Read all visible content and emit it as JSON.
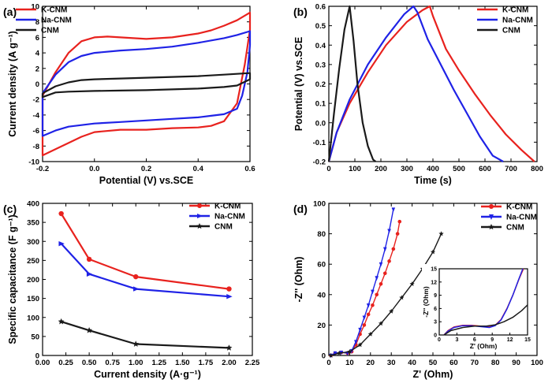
{
  "colors": {
    "K-CNM": "#e8221e",
    "Na-CNM": "#1f22e6",
    "CNM": "#1a1a1a"
  },
  "chart_data": [
    {
      "id": "a",
      "panel_label": "(a)",
      "type": "line",
      "xlabel": "Potential (V) vs.SCE",
      "ylabel": "Current density (A g⁻¹)",
      "xlim": [
        -0.2,
        0.6
      ],
      "ylim": [
        -10,
        10
      ],
      "xticks": [
        -0.2,
        0.0,
        0.2,
        0.4,
        0.6
      ],
      "xtick_labels": [
        "-0.2",
        "0.0",
        "0.2",
        "0.4",
        "0.6"
      ],
      "yticks": [
        -10,
        -8,
        -6,
        -4,
        -2,
        0,
        2,
        4,
        6,
        8,
        10
      ],
      "legend": "top-left",
      "series": [
        {
          "name": "K-CNM",
          "x": [
            -0.2,
            -0.15,
            -0.1,
            -0.05,
            0.0,
            0.05,
            0.1,
            0.2,
            0.3,
            0.4,
            0.45,
            0.5,
            0.55,
            0.6,
            0.6,
            0.58,
            0.55,
            0.5,
            0.45,
            0.4,
            0.3,
            0.2,
            0.1,
            0.0,
            -0.05,
            -0.1,
            -0.15,
            -0.2,
            -0.2
          ],
          "y": [
            -1.5,
            1.5,
            4.0,
            5.5,
            6.0,
            6.1,
            6.0,
            5.8,
            6.0,
            6.5,
            6.9,
            7.5,
            8.2,
            9.2,
            7.0,
            2.5,
            -2.5,
            -4.8,
            -5.4,
            -5.6,
            -5.7,
            -5.9,
            -5.9,
            -6.2,
            -6.8,
            -7.6,
            -8.4,
            -9.2,
            -1.5
          ]
        },
        {
          "name": "Na-CNM",
          "x": [
            -0.2,
            -0.15,
            -0.1,
            -0.05,
            0.0,
            0.1,
            0.2,
            0.3,
            0.4,
            0.5,
            0.55,
            0.6,
            0.6,
            0.59,
            0.57,
            0.55,
            0.5,
            0.45,
            0.4,
            0.3,
            0.2,
            0.1,
            0.0,
            -0.1,
            -0.15,
            -0.2,
            -0.2
          ],
          "y": [
            -1.2,
            1.2,
            2.8,
            3.6,
            4.0,
            4.3,
            4.5,
            4.8,
            5.3,
            5.9,
            6.3,
            6.8,
            5.0,
            1.5,
            -1.5,
            -3.2,
            -3.9,
            -4.1,
            -4.3,
            -4.5,
            -4.7,
            -4.9,
            -5.1,
            -5.5,
            -6.0,
            -6.7,
            -1.2
          ]
        },
        {
          "name": "CNM",
          "x": [
            -0.2,
            -0.15,
            -0.1,
            -0.05,
            0.0,
            0.1,
            0.2,
            0.3,
            0.4,
            0.5,
            0.6,
            0.6,
            0.55,
            0.5,
            0.45,
            0.4,
            0.3,
            0.2,
            0.1,
            0.0,
            -0.1,
            -0.15,
            -0.2,
            -0.2
          ],
          "y": [
            -1.2,
            -0.3,
            0.2,
            0.5,
            0.6,
            0.7,
            0.8,
            0.9,
            1.0,
            1.2,
            1.4,
            0.6,
            -0.2,
            -0.4,
            -0.5,
            -0.6,
            -0.7,
            -0.8,
            -0.85,
            -0.9,
            -1.0,
            -1.1,
            -1.7,
            -1.2
          ]
        }
      ]
    },
    {
      "id": "b",
      "panel_label": "(b)",
      "type": "line",
      "xlabel": "Time (s)",
      "ylabel": "Potential (V) vs.SCE",
      "xlim": [
        0,
        800
      ],
      "ylim": [
        -0.2,
        0.6
      ],
      "xticks": [
        0,
        100,
        200,
        300,
        400,
        500,
        600,
        700,
        800
      ],
      "xtick_labels": [
        "0",
        "100",
        "200",
        "300",
        "400",
        "500",
        "600",
        "700",
        "800"
      ],
      "yticks": [
        -0.2,
        -0.1,
        0.0,
        0.1,
        0.2,
        0.3,
        0.4,
        0.5,
        0.6
      ],
      "ytick_labels": [
        "-0.2",
        "-0.1",
        "0.0",
        "0.1",
        "0.2",
        "0.3",
        "0.4",
        "0.5",
        "0.6"
      ],
      "legend": "top-right",
      "series": [
        {
          "name": "K-CNM",
          "x": [
            0,
            30,
            80,
            150,
            220,
            300,
            360,
            388,
            400,
            450,
            500,
            560,
            620,
            680,
            740,
            790
          ],
          "y": [
            -0.2,
            -0.05,
            0.1,
            0.26,
            0.4,
            0.52,
            0.58,
            0.6,
            0.55,
            0.38,
            0.27,
            0.15,
            0.04,
            -0.06,
            -0.14,
            -0.2
          ]
        },
        {
          "name": "Na-CNM",
          "x": [
            0,
            30,
            80,
            150,
            220,
            290,
            325,
            340,
            380,
            430,
            480,
            530,
            580,
            630,
            670
          ],
          "y": [
            -0.2,
            -0.05,
            0.12,
            0.3,
            0.44,
            0.56,
            0.6,
            0.57,
            0.43,
            0.3,
            0.17,
            0.05,
            -0.07,
            -0.17,
            -0.2
          ]
        },
        {
          "name": "CNM",
          "x": [
            0,
            20,
            40,
            60,
            80,
            95,
            110,
            130,
            150,
            170,
            180
          ],
          "y": [
            -0.2,
            0.05,
            0.28,
            0.48,
            0.6,
            0.42,
            0.2,
            0.0,
            -0.12,
            -0.19,
            -0.2
          ]
        }
      ]
    },
    {
      "id": "c",
      "panel_label": "(c)",
      "type": "line",
      "xlabel": "Current density (A·g⁻¹)",
      "ylabel": "Specific capacitance (F g⁻¹)",
      "xlim": [
        0,
        2.25
      ],
      "ylim": [
        0,
        400
      ],
      "xticks": [
        0.0,
        0.25,
        0.5,
        0.75,
        1.0,
        1.25,
        1.5,
        1.75,
        2.0,
        2.25
      ],
      "xtick_labels": [
        "0.00",
        "0.25",
        "0.50",
        "0.75",
        "1.00",
        "1.25",
        "1.50",
        "1.75",
        "2.00",
        "2.25"
      ],
      "yticks": [
        0,
        50,
        100,
        150,
        200,
        250,
        300,
        350,
        400
      ],
      "legend": "top-right",
      "series": [
        {
          "name": "K-CNM",
          "marker": "circle",
          "x": [
            0.2,
            0.5,
            1.0,
            2.0
          ],
          "y": [
            373,
            253,
            207,
            175
          ]
        },
        {
          "name": "Na-CNM",
          "marker": "triangle-right",
          "x": [
            0.2,
            0.5,
            1.0,
            2.0
          ],
          "y": [
            294,
            214,
            175,
            155
          ]
        },
        {
          "name": "CNM",
          "marker": "star",
          "x": [
            0.2,
            0.5,
            1.0,
            2.0
          ],
          "y": [
            89,
            66,
            30,
            20
          ]
        }
      ]
    },
    {
      "id": "d",
      "panel_label": "(d)",
      "type": "scatter",
      "xlabel": "Z' (Ohm)",
      "ylabel": "-Z'' (Ohm)",
      "xlim": [
        0,
        100
      ],
      "ylim": [
        0,
        100
      ],
      "xticks": [
        0,
        10,
        20,
        30,
        40,
        50,
        60,
        70,
        80,
        90,
        100
      ],
      "yticks": [
        0,
        20,
        40,
        60,
        80,
        100
      ],
      "legend": "top-right",
      "series": [
        {
          "name": "K-CNM",
          "marker": "circle",
          "x": [
            1,
            3,
            6,
            9,
            11,
            13,
            15,
            17,
            19,
            21,
            23,
            25,
            27,
            29,
            31,
            33,
            34
          ],
          "y": [
            0,
            1.5,
            2,
            1.5,
            2.5,
            7,
            14,
            20,
            27,
            33,
            40,
            47,
            54,
            62,
            70,
            80,
            88
          ]
        },
        {
          "name": "Na-CNM",
          "marker": "triangle-down",
          "x": [
            1,
            3,
            6,
            9,
            11,
            13,
            15,
            17,
            19,
            21,
            23,
            25,
            27,
            29,
            31
          ],
          "y": [
            0,
            1.5,
            2,
            1.5,
            3,
            9,
            17,
            25,
            33,
            42,
            51,
            60,
            70,
            82,
            96
          ]
        },
        {
          "name": "CNM",
          "marker": "star",
          "x": [
            1,
            5,
            10,
            15,
            20,
            25,
            30,
            35,
            40,
            45,
            50,
            54
          ],
          "y": [
            0,
            1.5,
            2.5,
            7,
            14,
            21,
            29,
            38,
            47,
            57,
            68,
            80
          ]
        }
      ],
      "inset": {
        "xlabel": "Z' (Ohm)",
        "ylabel": "-Z'' (Ohm)",
        "xlim": [
          0,
          15
        ],
        "ylim": [
          0,
          15
        ],
        "xticks": [
          0,
          3,
          6,
          9,
          12,
          15
        ],
        "yticks": [
          0,
          3,
          6,
          9,
          12,
          15
        ],
        "series": [
          {
            "name": "K-CNM",
            "x": [
              0.8,
              1.5,
              2.5,
              4,
              5.5,
              7,
              8.5,
              9.5,
              10.5,
              11.5,
              12.5,
              13.5,
              14.3
            ],
            "y": [
              0,
              1.0,
              1.8,
              2.2,
              2.2,
              2.0,
              1.8,
              2.2,
              3.5,
              6,
              9,
              12.5,
              15
            ]
          },
          {
            "name": "Na-CNM",
            "x": [
              0.8,
              1.5,
              2.5,
              4,
              5.5,
              7,
              8.5,
              9.5,
              10.5,
              11.5,
              12.5,
              13.5,
              14.2
            ],
            "y": [
              0,
              0.9,
              1.7,
              2.1,
              2.1,
              1.9,
              1.7,
              2.1,
              3.4,
              5.9,
              9,
              12.6,
              15
            ]
          },
          {
            "name": "CNM",
            "x": [
              0.8,
              2,
              4,
              6,
              8,
              9.5,
              11,
              12.5,
              14,
              15
            ],
            "y": [
              0,
              1.0,
              1.7,
              2.0,
              2.0,
              2.3,
              3.0,
              4.0,
              5.5,
              6.8
            ]
          }
        ]
      }
    }
  ]
}
